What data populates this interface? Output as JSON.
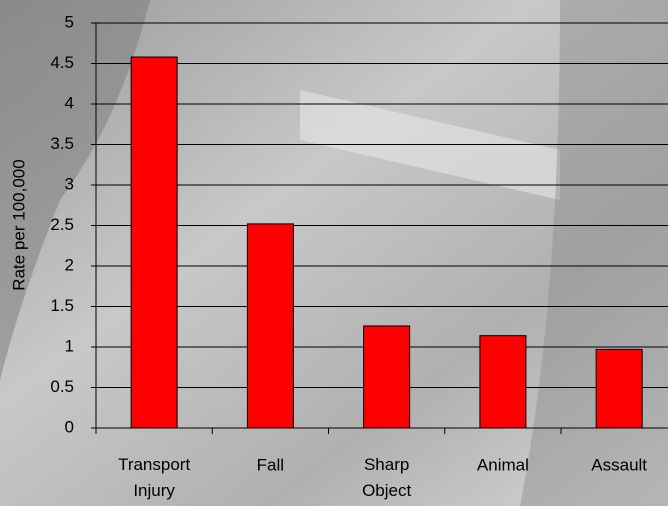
{
  "chart_data": {
    "type": "bar",
    "y_label": "Rate per 100,000",
    "categories": [
      "Transport Injury",
      "Fall",
      "Sharp Object",
      "Animal",
      "Assault"
    ],
    "values": [
      4.58,
      2.52,
      1.26,
      1.14,
      0.97
    ],
    "color": "#ff0000",
    "ylim": [
      0,
      5
    ],
    "yticks": [
      0,
      0.5,
      1,
      1.5,
      2,
      2.5,
      3,
      3.5,
      4,
      4.5,
      5
    ],
    "grid": true
  }
}
